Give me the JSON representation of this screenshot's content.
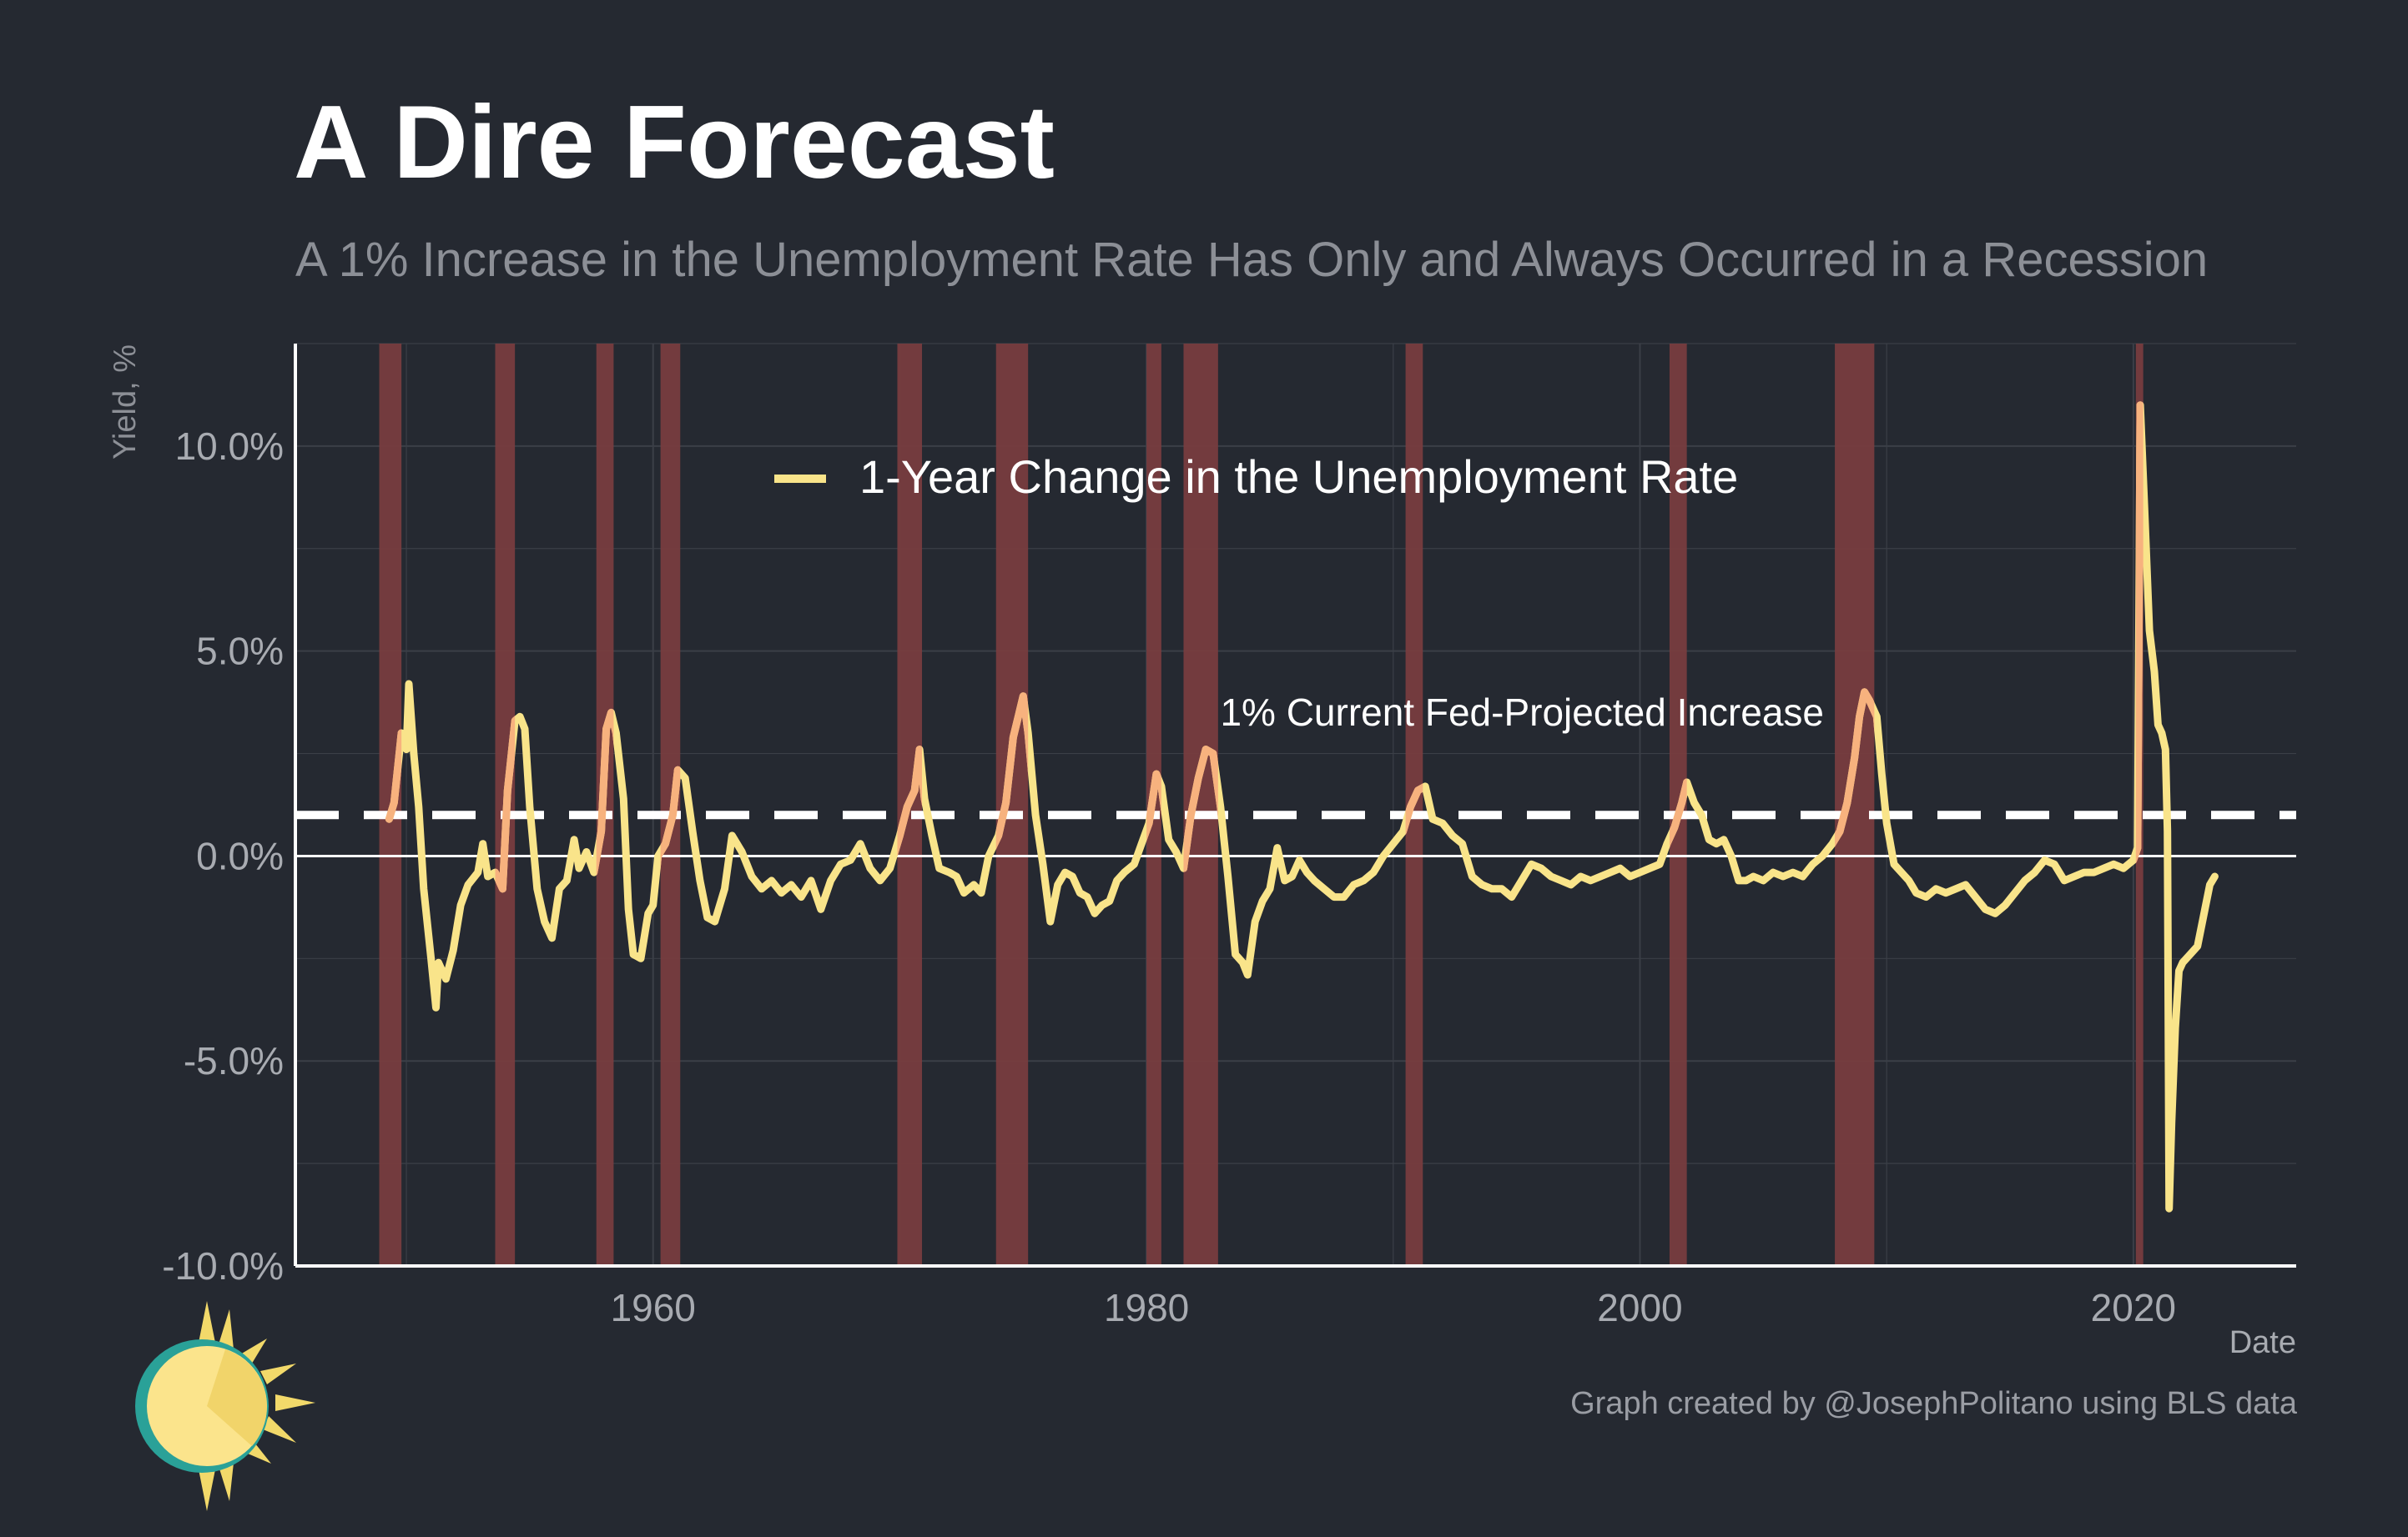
{
  "header": {
    "title": "A Dire Forecast",
    "subtitle": "A 1% Increase in the Unemployment Rate Has Only and Always Occurred in a Recession"
  },
  "footer": {
    "caption": "Graph created by @JosephPolitano using BLS data"
  },
  "logo": {
    "icon": "sun-logo-icon"
  },
  "colors": {
    "background": "#252931",
    "line": "#f9e48a",
    "line_recession": "#f7b27e",
    "recession_band": "#7a3d3f",
    "grid": "#3b3f47",
    "axis": "#ffffff",
    "tick_text": "#a8abb1"
  },
  "chart_data": {
    "type": "line",
    "title": "A Dire Forecast",
    "subtitle": "A 1% Increase in the Unemployment Rate Has Only and Always Occurred in a Recession",
    "xlabel": "Date",
    "ylabel": "Yield, %",
    "xlim": [
      1945.5,
      2026.6
    ],
    "ylim": [
      -10,
      12.5
    ],
    "x_ticks": [
      1960,
      1980,
      2000,
      2020
    ],
    "x_tick_labels": [
      "1960",
      "1980",
      "2000",
      "2020"
    ],
    "y_ticks": [
      -10,
      -5,
      0,
      5,
      10
    ],
    "y_tick_labels": [
      "-10.0%",
      "-5.0%",
      "0.0%",
      "5.0%",
      "10.0%"
    ],
    "grid": true,
    "legend": {
      "placement": "top-center",
      "entries": [
        "1-Year Change in the Unemployment Rate"
      ]
    },
    "series": [
      {
        "name": "1-Year Change in the Unemployment Rate",
        "points": [
          [
            1949.3,
            0.9
          ],
          [
            1949.5,
            1.3
          ],
          [
            1949.8,
            3.0
          ],
          [
            1950.0,
            2.6
          ],
          [
            1950.1,
            4.2
          ],
          [
            1950.3,
            2.5
          ],
          [
            1950.5,
            1.2
          ],
          [
            1950.7,
            -0.8
          ],
          [
            1951.0,
            -2.5
          ],
          [
            1951.2,
            -3.7
          ],
          [
            1951.3,
            -2.6
          ],
          [
            1951.6,
            -3.0
          ],
          [
            1951.9,
            -2.3
          ],
          [
            1952.2,
            -1.2
          ],
          [
            1952.5,
            -0.7
          ],
          [
            1952.9,
            -0.4
          ],
          [
            1953.1,
            0.3
          ],
          [
            1953.3,
            -0.5
          ],
          [
            1953.6,
            -0.4
          ],
          [
            1953.9,
            -0.8
          ],
          [
            1954.1,
            1.6
          ],
          [
            1954.4,
            3.3
          ],
          [
            1954.6,
            3.4
          ],
          [
            1954.8,
            3.1
          ],
          [
            1955.0,
            1.2
          ],
          [
            1955.3,
            -0.8
          ],
          [
            1955.6,
            -1.6
          ],
          [
            1955.9,
            -2.0
          ],
          [
            1956.2,
            -0.8
          ],
          [
            1956.5,
            -0.6
          ],
          [
            1956.8,
            0.4
          ],
          [
            1957.0,
            -0.3
          ],
          [
            1957.3,
            0.1
          ],
          [
            1957.6,
            -0.4
          ],
          [
            1957.9,
            0.6
          ],
          [
            1958.1,
            3.1
          ],
          [
            1958.3,
            3.5
          ],
          [
            1958.5,
            3.0
          ],
          [
            1958.8,
            1.4
          ],
          [
            1959.0,
            -1.3
          ],
          [
            1959.2,
            -2.4
          ],
          [
            1959.5,
            -2.5
          ],
          [
            1959.8,
            -1.4
          ],
          [
            1960.0,
            -1.2
          ],
          [
            1960.2,
            0.0
          ],
          [
            1960.5,
            0.3
          ],
          [
            1960.8,
            1.0
          ],
          [
            1961.0,
            2.1
          ],
          [
            1961.3,
            1.9
          ],
          [
            1961.6,
            0.6
          ],
          [
            1961.9,
            -0.6
          ],
          [
            1962.2,
            -1.5
          ],
          [
            1962.5,
            -1.6
          ],
          [
            1962.9,
            -0.8
          ],
          [
            1963.2,
            0.5
          ],
          [
            1963.6,
            0.1
          ],
          [
            1964.0,
            -0.5
          ],
          [
            1964.4,
            -0.8
          ],
          [
            1964.8,
            -0.6
          ],
          [
            1965.2,
            -0.9
          ],
          [
            1965.6,
            -0.7
          ],
          [
            1966.0,
            -1.0
          ],
          [
            1966.4,
            -0.6
          ],
          [
            1966.8,
            -1.3
          ],
          [
            1967.2,
            -0.6
          ],
          [
            1967.6,
            -0.2
          ],
          [
            1968.0,
            -0.1
          ],
          [
            1968.4,
            0.3
          ],
          [
            1968.8,
            -0.3
          ],
          [
            1969.2,
            -0.6
          ],
          [
            1969.6,
            -0.3
          ],
          [
            1970.0,
            0.5
          ],
          [
            1970.3,
            1.2
          ],
          [
            1970.6,
            1.6
          ],
          [
            1970.8,
            2.6
          ],
          [
            1971.0,
            1.4
          ],
          [
            1971.3,
            0.5
          ],
          [
            1971.6,
            -0.3
          ],
          [
            1972.0,
            -0.4
          ],
          [
            1972.3,
            -0.5
          ],
          [
            1972.6,
            -0.9
          ],
          [
            1973.0,
            -0.7
          ],
          [
            1973.3,
            -0.9
          ],
          [
            1973.6,
            0.0
          ],
          [
            1974.0,
            0.5
          ],
          [
            1974.3,
            1.3
          ],
          [
            1974.6,
            2.9
          ],
          [
            1974.8,
            3.4
          ],
          [
            1975.0,
            3.9
          ],
          [
            1975.2,
            3.0
          ],
          [
            1975.5,
            1.0
          ],
          [
            1975.8,
            -0.2
          ],
          [
            1976.1,
            -1.6
          ],
          [
            1976.4,
            -0.7
          ],
          [
            1976.7,
            -0.4
          ],
          [
            1977.0,
            -0.5
          ],
          [
            1977.3,
            -0.9
          ],
          [
            1977.6,
            -1.0
          ],
          [
            1977.9,
            -1.4
          ],
          [
            1978.2,
            -1.2
          ],
          [
            1978.5,
            -1.1
          ],
          [
            1978.8,
            -0.6
          ],
          [
            1979.1,
            -0.4
          ],
          [
            1979.5,
            -0.2
          ],
          [
            1979.8,
            0.3
          ],
          [
            1980.1,
            0.8
          ],
          [
            1980.4,
            2.0
          ],
          [
            1980.6,
            1.7
          ],
          [
            1980.9,
            0.4
          ],
          [
            1981.2,
            0.1
          ],
          [
            1981.5,
            -0.3
          ],
          [
            1981.8,
            1.0
          ],
          [
            1982.1,
            1.9
          ],
          [
            1982.4,
            2.6
          ],
          [
            1982.7,
            2.5
          ],
          [
            1983.0,
            1.2
          ],
          [
            1983.3,
            -0.5
          ],
          [
            1983.6,
            -2.4
          ],
          [
            1983.9,
            -2.6
          ],
          [
            1984.1,
            -2.9
          ],
          [
            1984.4,
            -1.6
          ],
          [
            1984.7,
            -1.1
          ],
          [
            1985.0,
            -0.8
          ],
          [
            1985.3,
            0.2
          ],
          [
            1985.6,
            -0.6
          ],
          [
            1985.9,
            -0.5
          ],
          [
            1986.2,
            -0.1
          ],
          [
            1986.5,
            -0.4
          ],
          [
            1986.8,
            -0.6
          ],
          [
            1987.2,
            -0.8
          ],
          [
            1987.6,
            -1.0
          ],
          [
            1988.0,
            -1.0
          ],
          [
            1988.4,
            -0.7
          ],
          [
            1988.8,
            -0.6
          ],
          [
            1989.2,
            -0.4
          ],
          [
            1989.6,
            0.0
          ],
          [
            1990.0,
            0.3
          ],
          [
            1990.4,
            0.6
          ],
          [
            1990.7,
            1.2
          ],
          [
            1991.0,
            1.6
          ],
          [
            1991.3,
            1.7
          ],
          [
            1991.6,
            0.9
          ],
          [
            1992.0,
            0.8
          ],
          [
            1992.4,
            0.5
          ],
          [
            1992.8,
            0.3
          ],
          [
            1993.2,
            -0.5
          ],
          [
            1993.6,
            -0.7
          ],
          [
            1994.0,
            -0.8
          ],
          [
            1994.4,
            -0.8
          ],
          [
            1994.8,
            -1.0
          ],
          [
            1995.2,
            -0.6
          ],
          [
            1995.6,
            -0.2
          ],
          [
            1996.0,
            -0.3
          ],
          [
            1996.4,
            -0.5
          ],
          [
            1996.8,
            -0.6
          ],
          [
            1997.2,
            -0.7
          ],
          [
            1997.6,
            -0.5
          ],
          [
            1998.0,
            -0.6
          ],
          [
            1998.4,
            -0.5
          ],
          [
            1998.8,
            -0.4
          ],
          [
            1999.2,
            -0.3
          ],
          [
            1999.6,
            -0.5
          ],
          [
            2000.0,
            -0.4
          ],
          [
            2000.4,
            -0.3
          ],
          [
            2000.8,
            -0.2
          ],
          [
            2001.1,
            0.3
          ],
          [
            2001.4,
            0.7
          ],
          [
            2001.7,
            1.3
          ],
          [
            2001.9,
            1.8
          ],
          [
            2002.2,
            1.3
          ],
          [
            2002.5,
            1.0
          ],
          [
            2002.8,
            0.4
          ],
          [
            2003.1,
            0.3
          ],
          [
            2003.4,
            0.4
          ],
          [
            2003.7,
            0.0
          ],
          [
            2004.0,
            -0.6
          ],
          [
            2004.3,
            -0.6
          ],
          [
            2004.6,
            -0.5
          ],
          [
            2005.0,
            -0.6
          ],
          [
            2005.4,
            -0.4
          ],
          [
            2005.8,
            -0.5
          ],
          [
            2006.2,
            -0.4
          ],
          [
            2006.6,
            -0.5
          ],
          [
            2007.0,
            -0.2
          ],
          [
            2007.4,
            0.0
          ],
          [
            2007.8,
            0.3
          ],
          [
            2008.1,
            0.6
          ],
          [
            2008.4,
            1.3
          ],
          [
            2008.7,
            2.4
          ],
          [
            2008.9,
            3.4
          ],
          [
            2009.1,
            4.0
          ],
          [
            2009.3,
            3.8
          ],
          [
            2009.6,
            3.4
          ],
          [
            2009.8,
            2.0
          ],
          [
            2010.0,
            0.8
          ],
          [
            2010.3,
            -0.2
          ],
          [
            2010.6,
            -0.4
          ],
          [
            2010.9,
            -0.6
          ],
          [
            2011.2,
            -0.9
          ],
          [
            2011.6,
            -1.0
          ],
          [
            2012.0,
            -0.8
          ],
          [
            2012.4,
            -0.9
          ],
          [
            2012.8,
            -0.8
          ],
          [
            2013.2,
            -0.7
          ],
          [
            2013.6,
            -1.0
          ],
          [
            2014.0,
            -1.3
          ],
          [
            2014.4,
            -1.4
          ],
          [
            2014.8,
            -1.2
          ],
          [
            2015.2,
            -0.9
          ],
          [
            2015.6,
            -0.6
          ],
          [
            2016.0,
            -0.4
          ],
          [
            2016.4,
            -0.1
          ],
          [
            2016.8,
            -0.2
          ],
          [
            2017.2,
            -0.6
          ],
          [
            2017.6,
            -0.5
          ],
          [
            2018.0,
            -0.4
          ],
          [
            2018.4,
            -0.4
          ],
          [
            2018.8,
            -0.3
          ],
          [
            2019.2,
            -0.2
          ],
          [
            2019.6,
            -0.3
          ],
          [
            2020.0,
            -0.1
          ],
          [
            2020.17,
            0.2
          ],
          [
            2020.28,
            11.0
          ],
          [
            2020.45,
            8.5
          ],
          [
            2020.65,
            5.5
          ],
          [
            2020.85,
            4.5
          ],
          [
            2021.0,
            3.2
          ],
          [
            2021.15,
            3.0
          ],
          [
            2021.3,
            2.6
          ],
          [
            2021.38,
            0.6
          ],
          [
            2021.45,
            -8.6
          ],
          [
            2021.55,
            -6.5
          ],
          [
            2021.7,
            -4.2
          ],
          [
            2021.85,
            -2.8
          ],
          [
            2022.0,
            -2.6
          ],
          [
            2022.3,
            -2.4
          ],
          [
            2022.6,
            -2.2
          ],
          [
            2022.9,
            -1.3
          ],
          [
            2023.1,
            -0.7
          ],
          [
            2023.3,
            -0.5
          ]
        ]
      }
    ],
    "reference_line": {
      "y": 1.0,
      "style": "dashed",
      "label": "1% Current Fed-Projected Increase"
    },
    "recessions": [
      [
        1948.9,
        1949.8
      ],
      [
        1953.6,
        1954.4
      ],
      [
        1957.7,
        1958.4
      ],
      [
        1960.3,
        1961.1
      ],
      [
        1969.9,
        1970.9
      ],
      [
        1973.9,
        1975.2
      ],
      [
        1980.0,
        1980.6
      ],
      [
        1981.5,
        1982.9
      ],
      [
        1990.5,
        1991.2
      ],
      [
        2001.2,
        2001.9
      ],
      [
        2007.9,
        2009.5
      ],
      [
        2020.1,
        2020.4
      ]
    ]
  }
}
